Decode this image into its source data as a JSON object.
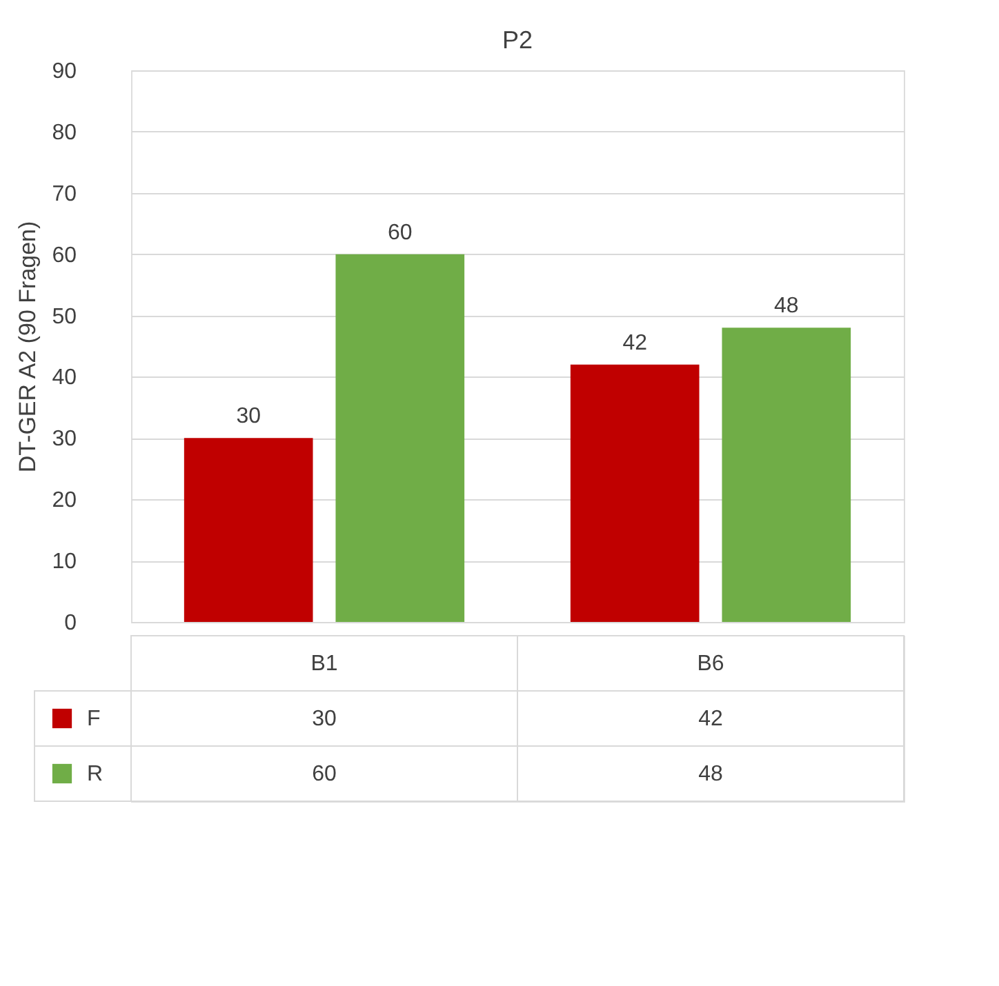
{
  "chart_data": {
    "type": "bar",
    "title": "P2",
    "ylabel": "DT-GER A2 (90 Fragen)",
    "categories": [
      "B1",
      "B6"
    ],
    "series": [
      {
        "name": "F",
        "color": "#c00000",
        "values": [
          30,
          42
        ],
        "value_labels": [
          "30",
          "42"
        ]
      },
      {
        "name": "R",
        "color": "#70ad47",
        "values": [
          60,
          48
        ],
        "value_labels": [
          "60",
          "48"
        ]
      }
    ],
    "ylim": [
      0,
      90
    ],
    "yticks": [
      0,
      10,
      20,
      30,
      40,
      50,
      60,
      70,
      80,
      90
    ],
    "grid": "y",
    "legend": "bottom",
    "annotations": [
      "30",
      "42",
      "60",
      "48"
    ]
  }
}
